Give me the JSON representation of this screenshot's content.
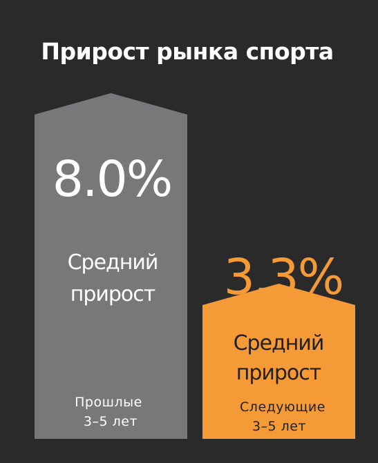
{
  "title": "Прирост рынка спорта",
  "colors": {
    "background": "#2b2a2a",
    "past_bar": "#78787b",
    "future_bar": "#f49a37",
    "white": "#ffffff",
    "dark_text": "#231f20"
  },
  "chart_data": {
    "type": "bar",
    "title": "Прирост рынка спорта",
    "unit": "%",
    "series": [
      {
        "value": 8.0,
        "value_label": "8.0%",
        "label_line1": "Средний",
        "label_line2": "прирост",
        "period_line1": "Прошлые",
        "period_line2": "3–5  лет",
        "color": "#78787b"
      },
      {
        "value": 3.3,
        "value_label": "3.3%",
        "label_line1": "Средний",
        "label_line2": "прирост",
        "period_line1": "Следующие",
        "period_line2": "3–5 лет",
        "color": "#f49a37"
      }
    ]
  }
}
